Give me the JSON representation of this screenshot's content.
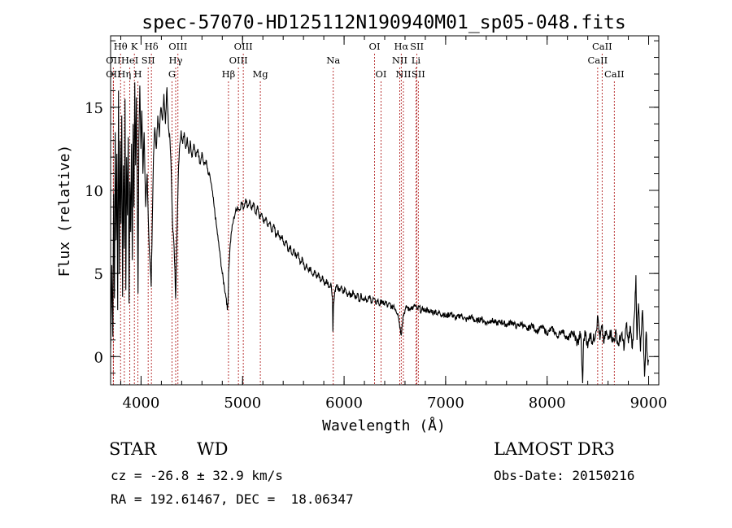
{
  "chart_data": {
    "type": "line",
    "title": "spec-57070-HD125112N190940M01_sp05-048.fits",
    "xlabel": "Wavelength (Å)",
    "ylabel": "Flux (relative)",
    "xlim": [
      3700,
      9100
    ],
    "ylim": [
      -1.7,
      19.3
    ],
    "xticks": [
      4000,
      5000,
      6000,
      7000,
      8000,
      9000
    ],
    "xtick_labels": [
      "4000",
      "5000",
      "6000",
      "7000",
      "8000",
      "9000"
    ],
    "yticks": [
      0,
      5,
      10,
      15
    ],
    "ytick_labels": [
      "0",
      "5",
      "10",
      "15"
    ],
    "x_minor_step": 200,
    "y_minor_step": 1,
    "grid": false,
    "series": [
      {
        "name": "flux",
        "points": [
          [
            3700,
            0.5
          ],
          [
            3712,
            5.5
          ],
          [
            3722,
            1.2
          ],
          [
            3730,
            9.8
          ],
          [
            3738,
            3.5
          ],
          [
            3746,
            13.5
          ],
          [
            3754,
            7.0
          ],
          [
            3762,
            12.2
          ],
          [
            3770,
            2.8
          ],
          [
            3778,
            16.0
          ],
          [
            3786,
            5.0
          ],
          [
            3794,
            13.0
          ],
          [
            3802,
            8.0
          ],
          [
            3810,
            14.5
          ],
          [
            3818,
            3.6
          ],
          [
            3826,
            11.5
          ],
          [
            3834,
            6.5
          ],
          [
            3842,
            15.5
          ],
          [
            3850,
            4.0
          ],
          [
            3858,
            12.0
          ],
          [
            3866,
            8.5
          ],
          [
            3874,
            13.2
          ],
          [
            3882,
            3.2
          ],
          [
            3890,
            10.5
          ],
          [
            3898,
            7.5
          ],
          [
            3906,
            12.8
          ],
          [
            3914,
            5.8
          ],
          [
            3922,
            14.0
          ],
          [
            3930,
            9.0
          ],
          [
            3938,
            16.5
          ],
          [
            3946,
            11.5
          ],
          [
            3954,
            15.6
          ],
          [
            3962,
            10.5
          ],
          [
            3970,
            3.8
          ],
          [
            3978,
            13.0
          ],
          [
            3988,
            16.3
          ],
          [
            3998,
            12.5
          ],
          [
            4008,
            14.8
          ],
          [
            4018,
            11.0
          ],
          [
            4030,
            13.5
          ],
          [
            4045,
            9.0
          ],
          [
            4060,
            11.0
          ],
          [
            4075,
            7.5
          ],
          [
            4090,
            5.5
          ],
          [
            4100,
            4.2
          ],
          [
            4110,
            8.0
          ],
          [
            4122,
            12.0
          ],
          [
            4135,
            13.8
          ],
          [
            4150,
            12.5
          ],
          [
            4165,
            14.5
          ],
          [
            4180,
            13.2
          ],
          [
            4195,
            15.0
          ],
          [
            4210,
            14.2
          ],
          [
            4225,
            15.8
          ],
          [
            4240,
            14.0
          ],
          [
            4255,
            16.2
          ],
          [
            4270,
            13.8
          ],
          [
            4285,
            13.0
          ],
          [
            4298,
            11.0
          ],
          [
            4310,
            8.0
          ],
          [
            4322,
            7.0
          ],
          [
            4334,
            5.2
          ],
          [
            4340,
            3.5
          ],
          [
            4346,
            5.0
          ],
          [
            4358,
            8.5
          ],
          [
            4370,
            11.5
          ],
          [
            4382,
            12.8
          ],
          [
            4395,
            13.6
          ],
          [
            4410,
            12.8
          ],
          [
            4425,
            13.5
          ],
          [
            4440,
            12.5
          ],
          [
            4455,
            13.2
          ],
          [
            4470,
            12.2
          ],
          [
            4485,
            13.0
          ],
          [
            4500,
            12.0
          ],
          [
            4520,
            12.8
          ],
          [
            4540,
            12.0
          ],
          [
            4560,
            12.5
          ],
          [
            4580,
            11.6
          ],
          [
            4600,
            12.3
          ],
          [
            4620,
            11.5
          ],
          [
            4640,
            11.8
          ],
          [
            4660,
            11.0
          ],
          [
            4680,
            10.8
          ],
          [
            4700,
            10.0
          ],
          [
            4720,
            9.0
          ],
          [
            4740,
            8.0
          ],
          [
            4760,
            7.0
          ],
          [
            4780,
            6.0
          ],
          [
            4800,
            5.0
          ],
          [
            4820,
            4.2
          ],
          [
            4840,
            3.5
          ],
          [
            4850,
            2.8
          ],
          [
            4856,
            3.2
          ],
          [
            4862,
            5.0
          ],
          [
            4875,
            6.5
          ],
          [
            4890,
            7.5
          ],
          [
            4910,
            8.2
          ],
          [
            4930,
            8.7
          ],
          [
            4950,
            9.0
          ],
          [
            4970,
            8.8
          ],
          [
            4990,
            9.3
          ],
          [
            5010,
            8.9
          ],
          [
            5030,
            9.5
          ],
          [
            5050,
            9.0
          ],
          [
            5070,
            9.4
          ],
          [
            5090,
            8.8
          ],
          [
            5110,
            9.2
          ],
          [
            5130,
            8.6
          ],
          [
            5150,
            9.0
          ],
          [
            5170,
            8.3
          ],
          [
            5190,
            8.6
          ],
          [
            5210,
            8.0
          ],
          [
            5230,
            8.4
          ],
          [
            5250,
            7.8
          ],
          [
            5270,
            8.1
          ],
          [
            5290,
            7.5
          ],
          [
            5310,
            7.9
          ],
          [
            5330,
            7.2
          ],
          [
            5350,
            7.6
          ],
          [
            5370,
            7.0
          ],
          [
            5390,
            7.3
          ],
          [
            5410,
            6.7
          ],
          [
            5430,
            7.0
          ],
          [
            5450,
            6.4
          ],
          [
            5470,
            6.7
          ],
          [
            5490,
            6.1
          ],
          [
            5510,
            6.4
          ],
          [
            5530,
            5.9
          ],
          [
            5550,
            6.2
          ],
          [
            5570,
            5.6
          ],
          [
            5590,
            5.9
          ],
          [
            5610,
            5.3
          ],
          [
            5630,
            5.6
          ],
          [
            5650,
            5.1
          ],
          [
            5670,
            5.4
          ],
          [
            5690,
            4.9
          ],
          [
            5710,
            5.2
          ],
          [
            5730,
            4.7
          ],
          [
            5750,
            5.0
          ],
          [
            5770,
            4.5
          ],
          [
            5790,
            4.8
          ],
          [
            5810,
            4.3
          ],
          [
            5830,
            4.6
          ],
          [
            5850,
            4.2
          ],
          [
            5870,
            4.4
          ],
          [
            5885,
            3.6
          ],
          [
            5890,
            1.5
          ],
          [
            5895,
            3.0
          ],
          [
            5910,
            4.0
          ],
          [
            5930,
            4.3
          ],
          [
            5950,
            3.9
          ],
          [
            5970,
            4.2
          ],
          [
            5990,
            3.8
          ],
          [
            6010,
            4.1
          ],
          [
            6030,
            3.7
          ],
          [
            6050,
            3.9
          ],
          [
            6070,
            3.6
          ],
          [
            6090,
            3.9
          ],
          [
            6110,
            3.5
          ],
          [
            6130,
            3.8
          ],
          [
            6150,
            3.4
          ],
          [
            6170,
            3.7
          ],
          [
            6190,
            3.4
          ],
          [
            6210,
            3.6
          ],
          [
            6230,
            3.3
          ],
          [
            6250,
            3.6
          ],
          [
            6270,
            3.3
          ],
          [
            6290,
            3.5
          ],
          [
            6310,
            3.2
          ],
          [
            6330,
            3.4
          ],
          [
            6350,
            3.1
          ],
          [
            6370,
            3.4
          ],
          [
            6390,
            3.1
          ],
          [
            6410,
            3.3
          ],
          [
            6430,
            3.0
          ],
          [
            6450,
            3.2
          ],
          [
            6470,
            2.9
          ],
          [
            6490,
            3.1
          ],
          [
            6510,
            2.8
          ],
          [
            6530,
            2.6
          ],
          [
            6545,
            2.0
          ],
          [
            6555,
            1.6
          ],
          [
            6563,
            1.3
          ],
          [
            6570,
            1.8
          ],
          [
            6580,
            2.4
          ],
          [
            6600,
            2.8
          ],
          [
            6620,
            3.0
          ],
          [
            6640,
            2.8
          ],
          [
            6660,
            3.0
          ],
          [
            6680,
            2.9
          ],
          [
            6700,
            3.1
          ],
          [
            6720,
            2.8
          ],
          [
            6740,
            3.0
          ],
          [
            6760,
            2.7
          ],
          [
            6780,
            2.9
          ],
          [
            6800,
            2.7
          ],
          [
            6820,
            2.9
          ],
          [
            6840,
            2.6
          ],
          [
            6860,
            2.8
          ],
          [
            6880,
            2.6
          ],
          [
            6900,
            2.8
          ],
          [
            6920,
            2.5
          ],
          [
            6940,
            2.7
          ],
          [
            6960,
            2.5
          ],
          [
            6980,
            2.6
          ],
          [
            7000,
            2.4
          ],
          [
            7050,
            2.6
          ],
          [
            7100,
            2.3
          ],
          [
            7150,
            2.5
          ],
          [
            7200,
            2.2
          ],
          [
            7250,
            2.4
          ],
          [
            7300,
            2.1
          ],
          [
            7350,
            2.3
          ],
          [
            7400,
            2.0
          ],
          [
            7450,
            2.2
          ],
          [
            7500,
            2.0
          ],
          [
            7550,
            2.1
          ],
          [
            7600,
            1.9
          ],
          [
            7650,
            2.1
          ],
          [
            7700,
            1.8
          ],
          [
            7750,
            2.0
          ],
          [
            7800,
            1.6
          ],
          [
            7850,
            1.9
          ],
          [
            7900,
            1.5
          ],
          [
            7950,
            1.8
          ],
          [
            8000,
            1.4
          ],
          [
            8050,
            1.7
          ],
          [
            8100,
            1.2
          ],
          [
            8150,
            1.6
          ],
          [
            8200,
            1.0
          ],
          [
            8250,
            1.5
          ],
          [
            8300,
            0.8
          ],
          [
            8330,
            1.4
          ],
          [
            8350,
            -1.6
          ],
          [
            8360,
            1.0
          ],
          [
            8380,
            1.5
          ],
          [
            8400,
            0.5
          ],
          [
            8420,
            1.4
          ],
          [
            8450,
            0.9
          ],
          [
            8480,
            1.5
          ],
          [
            8500,
            2.4
          ],
          [
            8520,
            1.0
          ],
          [
            8540,
            1.8
          ],
          [
            8560,
            0.8
          ],
          [
            8580,
            1.5
          ],
          [
            8600,
            1.0
          ],
          [
            8620,
            1.6
          ],
          [
            8650,
            0.9
          ],
          [
            8680,
            1.4
          ],
          [
            8700,
            0.7
          ],
          [
            8730,
            1.3
          ],
          [
            8760,
            0.6
          ],
          [
            8780,
            2.0
          ],
          [
            8800,
            0.8
          ],
          [
            8820,
            1.8
          ],
          [
            8840,
            0.5
          ],
          [
            8860,
            2.5
          ],
          [
            8875,
            4.9
          ],
          [
            8885,
            1.0
          ],
          [
            8900,
            3.2
          ],
          [
            8920,
            0.3
          ],
          [
            8940,
            2.8
          ],
          [
            8960,
            -1.2
          ],
          [
            8975,
            1.5
          ],
          [
            8990,
            -0.2
          ],
          [
            9000,
            -0.3
          ]
        ]
      }
    ],
    "line_markers": [
      {
        "label": "Hθ",
        "wavelength": 3798,
        "row": 1
      },
      {
        "label": "OII",
        "wavelength": 3727,
        "row": 2
      },
      {
        "label": "OII",
        "wavelength": 3727,
        "row": 3
      },
      {
        "label": "K",
        "wavelength": 3934,
        "row": 1
      },
      {
        "label": "HeI",
        "wavelength": 3889,
        "row": 2
      },
      {
        "label": "Hη",
        "wavelength": 3835,
        "row": 3
      },
      {
        "label": "H",
        "wavelength": 3969,
        "row": 3
      },
      {
        "label": "SII",
        "wavelength": 4070,
        "row": 2
      },
      {
        "label": "Hδ",
        "wavelength": 4102,
        "row": 1
      },
      {
        "label": "OIII",
        "wavelength": 4363,
        "row": 1
      },
      {
        "label": "Hγ",
        "wavelength": 4341,
        "row": 2
      },
      {
        "label": "G",
        "wavelength": 4305,
        "row": 3
      },
      {
        "label": "Hβ",
        "wavelength": 4861,
        "row": 3
      },
      {
        "label": "OIII",
        "wavelength": 5007,
        "row": 1
      },
      {
        "label": "OIII",
        "wavelength": 4959,
        "row": 2
      },
      {
        "label": "Mg",
        "wavelength": 5175,
        "row": 3
      },
      {
        "label": "Na",
        "wavelength": 5893,
        "row": 2
      },
      {
        "label": "OI",
        "wavelength": 6300,
        "row": 1
      },
      {
        "label": "OI",
        "wavelength": 6364,
        "row": 3
      },
      {
        "label": "Hα",
        "wavelength": 6563,
        "row": 1
      },
      {
        "label": "NII",
        "wavelength": 6548,
        "row": 2
      },
      {
        "label": "NII",
        "wavelength": 6584,
        "row": 3
      },
      {
        "label": "SII",
        "wavelength": 6717,
        "row": 1
      },
      {
        "label": "Li",
        "wavelength": 6708,
        "row": 2
      },
      {
        "label": "SII",
        "wavelength": 6731,
        "row": 3
      },
      {
        "label": "CaII",
        "wavelength": 8542,
        "row": 1
      },
      {
        "label": "CaII",
        "wavelength": 8498,
        "row": 2
      },
      {
        "label": "CaII",
        "wavelength": 8662,
        "row": 3
      }
    ]
  },
  "info": {
    "object_type": "STAR",
    "subclass": "WD",
    "survey": "LAMOST DR3",
    "redshift": "cz = -26.8 ± 32.9 km/s",
    "obs_date": "Obs-Date: 20150216",
    "coords": "RA = 192.61467, DEC =  18.06347"
  },
  "colors": {
    "marker_line": "#b22222",
    "spectrum": "#000000"
  }
}
